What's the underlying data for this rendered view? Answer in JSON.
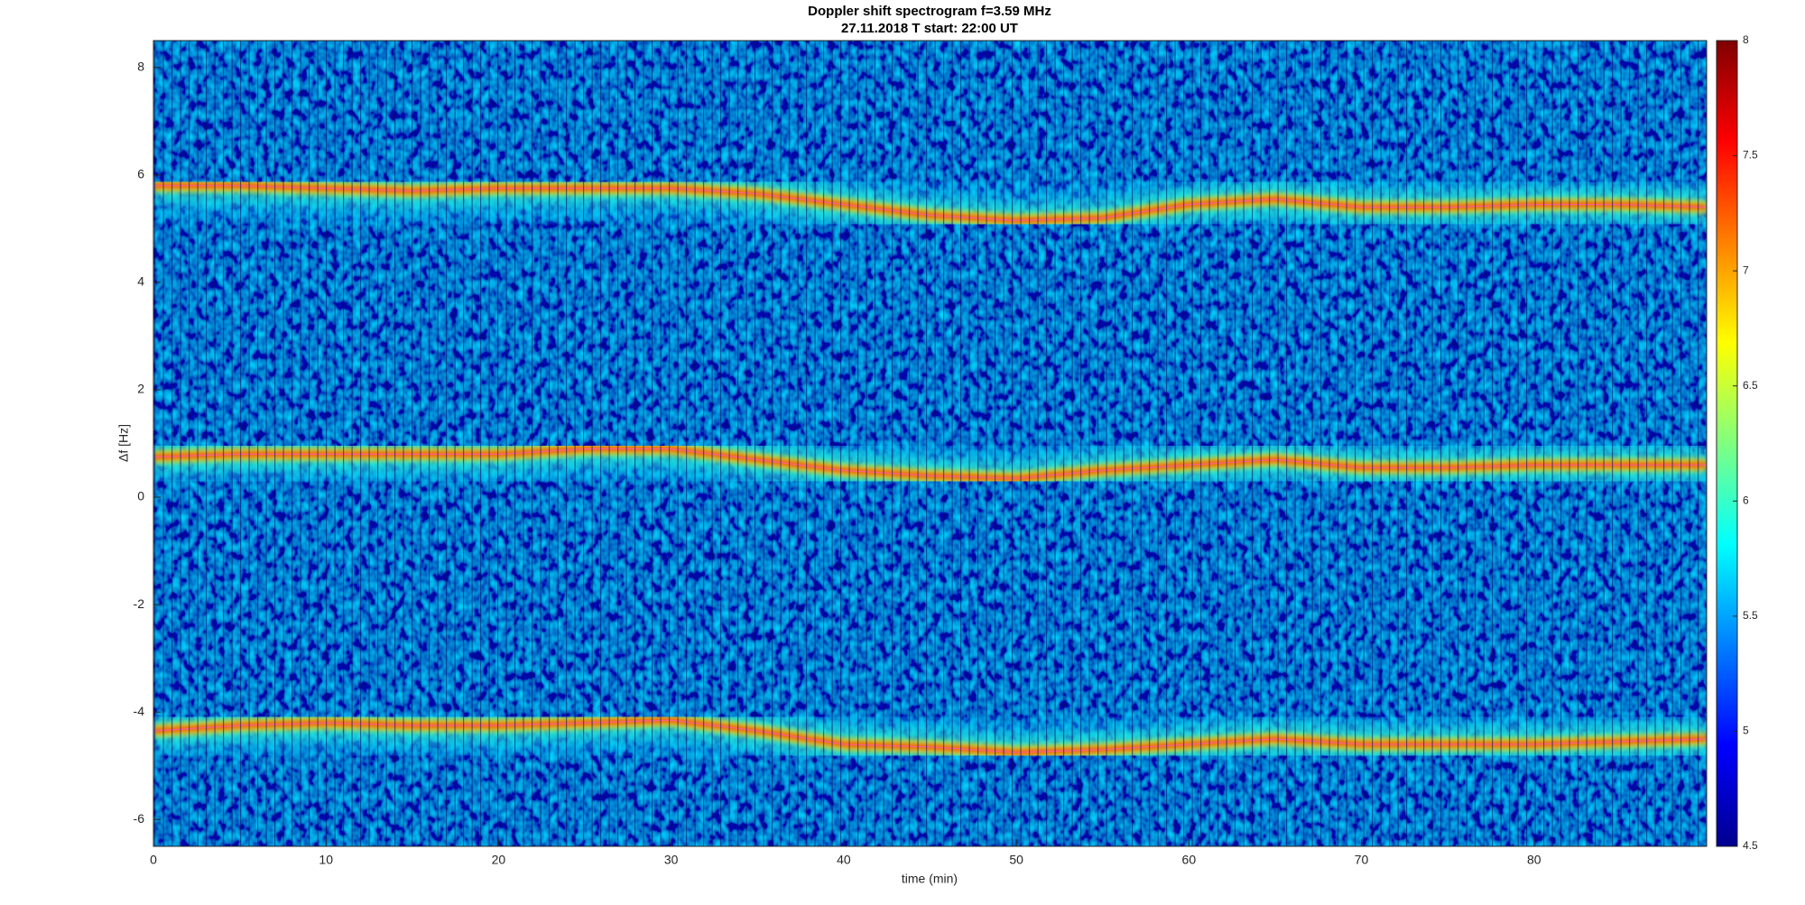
{
  "chart_data": {
    "type": "spectrogram",
    "title": "Doppler shift spectrogram f=3.59 MHz",
    "subtitle": "27.11.2018   T start: 22:00 UT",
    "xlabel": "time (min)",
    "ylabel": "Δf [Hz]",
    "xlim": [
      0,
      90
    ],
    "xticks": [
      0,
      10,
      20,
      30,
      40,
      50,
      60,
      70,
      80
    ],
    "ylim": [
      -6.5,
      8.5
    ],
    "yticks": [
      -6,
      -4,
      -2,
      0,
      2,
      4,
      6,
      8
    ],
    "colormap": "jet",
    "clim": [
      4.5,
      8
    ],
    "cticks": [
      4.5,
      5,
      5.5,
      6,
      6.5,
      7,
      7.5,
      8
    ],
    "series": [
      {
        "x": [
          0,
          5,
          10,
          15,
          20,
          25,
          30,
          35,
          40,
          45,
          50,
          55,
          60,
          65,
          70,
          75,
          80,
          85,
          90
        ],
        "values": [
          5.8,
          5.8,
          5.75,
          5.7,
          5.75,
          5.75,
          5.75,
          5.65,
          5.45,
          5.25,
          5.15,
          5.2,
          5.45,
          5.55,
          5.4,
          5.4,
          5.45,
          5.45,
          5.4
        ]
      },
      {
        "x": [
          0,
          5,
          10,
          15,
          20,
          25,
          30,
          35,
          40,
          45,
          50,
          55,
          60,
          65,
          70,
          75,
          80,
          85,
          90
        ],
        "values": [
          0.75,
          0.8,
          0.8,
          0.8,
          0.8,
          0.9,
          0.9,
          0.7,
          0.5,
          0.4,
          0.35,
          0.5,
          0.6,
          0.7,
          0.55,
          0.55,
          0.6,
          0.6,
          0.6
        ]
      },
      {
        "x": [
          0,
          5,
          10,
          15,
          20,
          25,
          30,
          35,
          40,
          45,
          50,
          55,
          60,
          65,
          70,
          75,
          80,
          85,
          90
        ],
        "values": [
          -4.35,
          -4.25,
          -4.2,
          -4.25,
          -4.25,
          -4.2,
          -4.15,
          -4.35,
          -4.6,
          -4.65,
          -4.75,
          -4.7,
          -4.6,
          -4.5,
          -4.6,
          -4.6,
          -4.6,
          -4.55,
          -4.5
        ]
      }
    ]
  }
}
